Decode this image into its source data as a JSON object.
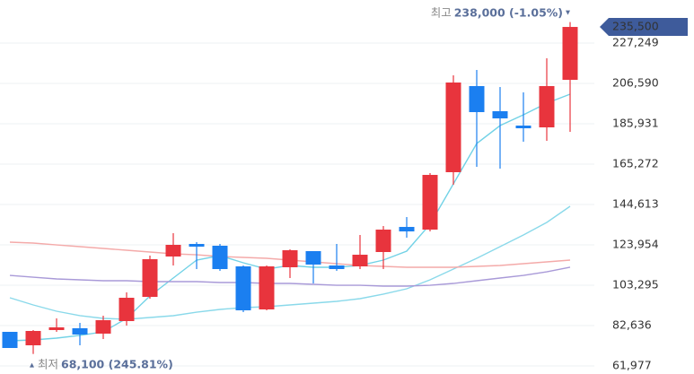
{
  "chart_data": {
    "type": "candlestick",
    "ylim": [
      57845,
      249290
    ],
    "yticks": [
      {
        "value": 61977,
        "label": "61,977"
      },
      {
        "value": 82636,
        "label": "82,636"
      },
      {
        "value": 103295,
        "label": "103,295"
      },
      {
        "value": 123954,
        "label": "123,954"
      },
      {
        "value": 144613,
        "label": "144,613"
      },
      {
        "value": 165272,
        "label": "165,272"
      },
      {
        "value": 185931,
        "label": "185,931"
      },
      {
        "value": 206590,
        "label": "206,590"
      },
      {
        "value": 227249,
        "label": "227,249"
      }
    ],
    "grid": true,
    "up_color": "#e8343d",
    "down_color": "#1b7ff0",
    "open": [
      79420,
      72540,
      80340,
      81260,
      78510,
      84930,
      97330,
      117990,
      124420,
      123500,
      112940,
      90900,
      112480,
      120740,
      113400,
      112940,
      120280,
      133130,
      131760,
      161140,
      205230,
      192360,
      185010,
      184090,
      208430
    ],
    "high": [
      79420,
      80340,
      86310,
      84010,
      87690,
      99620,
      118450,
      129930,
      125330,
      124420,
      113400,
      113400,
      121660,
      120740,
      124420,
      129010,
      133590,
      138180,
      160680,
      210730,
      213480,
      204750,
      202000,
      219450,
      238000
    ],
    "low": [
      71160,
      68100,
      79420,
      72540,
      75750,
      82640,
      96410,
      113400,
      111560,
      110650,
      89520,
      90440,
      106970,
      104210,
      110650,
      111560,
      111560,
      127630,
      130840,
      154710,
      163900,
      162980,
      176750,
      177210,
      181800
    ],
    "close": [
      71160,
      79880,
      81720,
      78050,
      85390,
      96870,
      116610,
      123960,
      123040,
      111560,
      90440,
      112940,
      121200,
      113860,
      111560,
      118900,
      131760,
      130840,
      159760,
      207050,
      191900,
      188690,
      183630,
      205230,
      235500
    ],
    "series": [
      {
        "color": "#72d2e6",
        "values": [
          74830,
          75290,
          76210,
          77590,
          79420,
          86310,
          97790,
          106970,
          116150,
          118450,
          114770,
          111560,
          113400,
          112480,
          112480,
          113400,
          116150,
          120740,
          134510,
          155170,
          175830,
          185010,
          190520,
          196490,
          201080
        ]
      },
      {
        "color": "#8ad9ea",
        "values": [
          96870,
          93200,
          89980,
          87690,
          86310,
          85850,
          86770,
          87690,
          89520,
          90900,
          91820,
          92280,
          93200,
          94110,
          95030,
          96410,
          98710,
          101460,
          106050,
          111560,
          117070,
          123040,
          129010,
          135430,
          143700
        ]
      },
      {
        "color": "#f4aaa9",
        "values": [
          125330,
          124870,
          123950,
          123040,
          122120,
          121200,
          120280,
          119360,
          118900,
          117990,
          117530,
          117070,
          116150,
          115230,
          114310,
          113400,
          112940,
          112480,
          112480,
          112480,
          112940,
          113400,
          114310,
          115230,
          116150
        ]
      },
      {
        "color": "#a99ad8",
        "values": [
          108340,
          107420,
          106510,
          106050,
          105590,
          105590,
          105130,
          105130,
          105130,
          104670,
          104670,
          104210,
          104210,
          103750,
          103290,
          103290,
          102840,
          102840,
          103290,
          104210,
          105590,
          106970,
          108340,
          110180,
          112480
        ]
      }
    ],
    "high_annotation": {
      "label": "최고",
      "text": "238,000 (-1.05%)"
    },
    "low_annotation": {
      "label": "최저",
      "text": "68,100 (245.81%)"
    },
    "price_tag": {
      "value": 235500,
      "label": "235,500"
    }
  }
}
